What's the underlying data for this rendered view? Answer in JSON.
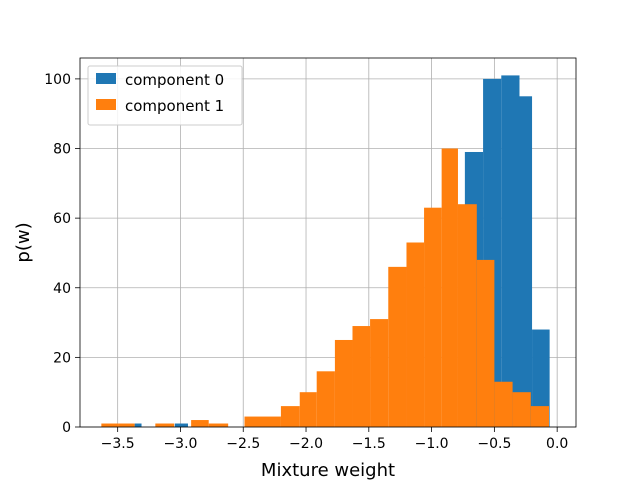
{
  "chart_data": {
    "type": "histogram",
    "xlabel": "Mixture weight",
    "ylabel": "p(w)",
    "xlim": [
      -3.8,
      0.15
    ],
    "ylim": [
      0,
      106
    ],
    "xticks": [
      -3.5,
      -3.0,
      -2.5,
      -2.0,
      -1.5,
      -1.0,
      -0.5,
      0.0
    ],
    "xtick_labels": [
      "−3.5",
      "−3.0",
      "−2.5",
      "−2.0",
      "−1.5",
      "−1.0",
      "−0.5",
      "0.0"
    ],
    "yticks": [
      0,
      20,
      40,
      60,
      80,
      100
    ],
    "ytick_labels": [
      "0",
      "20",
      "40",
      "60",
      "80",
      "100"
    ],
    "grid": true,
    "legend_position": "upper-left",
    "series": [
      {
        "name": "component 0",
        "color": "#1f77b4",
        "bins": [
          {
            "x0": -3.365,
            "x1": -3.31,
            "count": 1
          },
          {
            "x0": -3.045,
            "x1": -2.94,
            "count": 1
          },
          {
            "x0": -0.735,
            "x1": -0.59,
            "count": 79
          },
          {
            "x0": -0.59,
            "x1": -0.445,
            "count": 100
          },
          {
            "x0": -0.445,
            "x1": -0.3,
            "count": 101
          },
          {
            "x0": -0.3,
            "x1": -0.2,
            "count": 95
          },
          {
            "x0": -0.2,
            "x1": -0.06,
            "count": 28
          }
        ]
      },
      {
        "name": "component 1",
        "color": "#ff7f0e",
        "bins": [
          {
            "x0": -3.63,
            "x1": -3.49,
            "count": 1
          },
          {
            "x0": -3.49,
            "x1": -3.365,
            "count": 1
          },
          {
            "x0": -3.2,
            "x1": -3.05,
            "count": 1
          },
          {
            "x0": -2.915,
            "x1": -2.775,
            "count": 2
          },
          {
            "x0": -2.775,
            "x1": -2.62,
            "count": 1
          },
          {
            "x0": -2.49,
            "x1": -2.2,
            "count": 3
          },
          {
            "x0": -2.2,
            "x1": -2.05,
            "count": 6
          },
          {
            "x0": -2.05,
            "x1": -1.915,
            "count": 10
          },
          {
            "x0": -1.915,
            "x1": -1.77,
            "count": 16
          },
          {
            "x0": -1.77,
            "x1": -1.63,
            "count": 25
          },
          {
            "x0": -1.63,
            "x1": -1.49,
            "count": 29
          },
          {
            "x0": -1.49,
            "x1": -1.345,
            "count": 31
          },
          {
            "x0": -1.345,
            "x1": -1.2,
            "count": 46
          },
          {
            "x0": -1.2,
            "x1": -1.06,
            "count": 53
          },
          {
            "x0": -1.06,
            "x1": -0.92,
            "count": 63
          },
          {
            "x0": -0.92,
            "x1": -0.79,
            "count": 80
          },
          {
            "x0": -0.79,
            "x1": -0.64,
            "count": 64
          },
          {
            "x0": -0.64,
            "x1": -0.5,
            "count": 48
          },
          {
            "x0": -0.5,
            "x1": -0.355,
            "count": 13
          },
          {
            "x0": -0.355,
            "x1": -0.21,
            "count": 10
          },
          {
            "x0": -0.21,
            "x1": -0.065,
            "count": 6
          }
        ]
      }
    ]
  }
}
